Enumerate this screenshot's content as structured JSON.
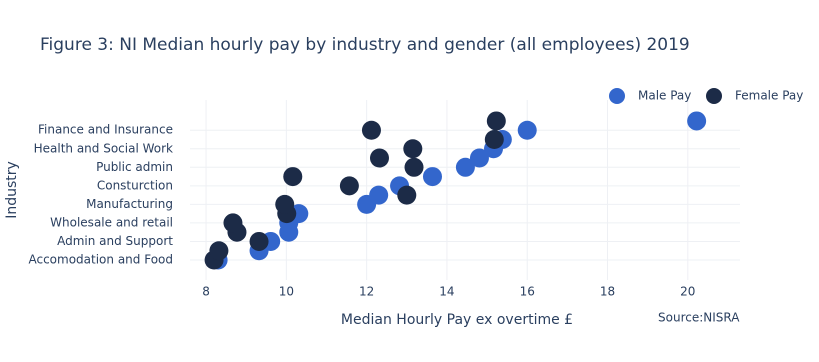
{
  "chart_data": {
    "type": "scatter",
    "title": "Figure 3: NI Median hourly pay by industry and gender (all employees) 2019",
    "x_label": "Median Hourly Pay ex overtime £",
    "y_label": "Industry",
    "annotation": "Source:NISRA",
    "categories": [
      "Accomodation and Food",
      null,
      "Admin and Support",
      null,
      "Wholesale and retail",
      null,
      "Manufacturing",
      null,
      "Consturction",
      null,
      "Public admin",
      null,
      "Health and Social Work",
      null,
      "Finance and Insurance",
      null
    ],
    "series": [
      {
        "name": "Male Pay",
        "color": "#3366cc",
        "values": [
          8.3,
          9.32,
          9.61,
          10.06,
          10.06,
          10.31,
          12.0,
          12.3,
          12.82,
          13.64,
          14.46,
          14.81,
          15.16,
          15.38,
          16.0,
          20.22
        ]
      },
      {
        "name": "Female Pay",
        "color": "#1c2b47",
        "values": [
          8.2,
          8.32,
          9.32,
          8.77,
          8.67,
          10.01,
          9.96,
          13.0,
          11.57,
          10.16,
          13.18,
          12.32,
          13.15,
          15.18,
          12.12,
          15.23
        ]
      }
    ],
    "xlim": [
      7.6,
      21.3
    ],
    "xticks": [
      8,
      10,
      12,
      14,
      16,
      18,
      20
    ],
    "grid": true,
    "legend": "top-right"
  }
}
